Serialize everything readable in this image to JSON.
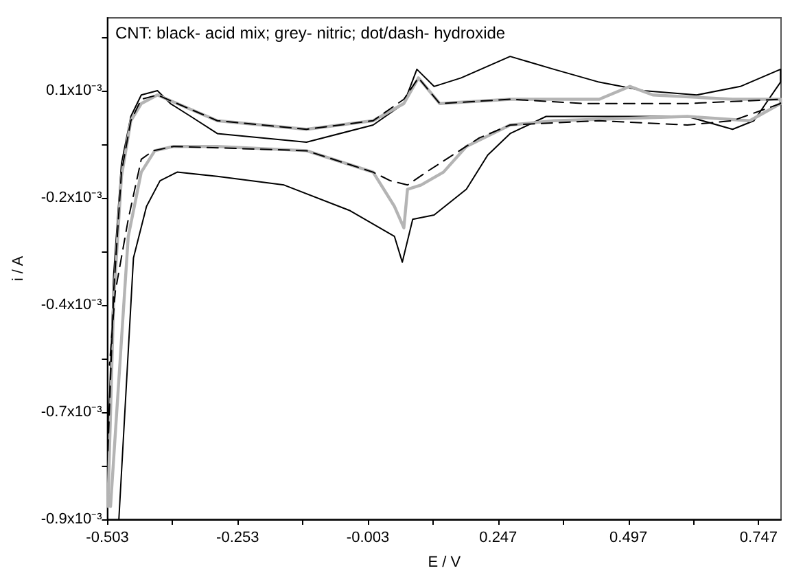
{
  "chart_data": {
    "type": "line",
    "xlabel": "E / V",
    "ylabel": "i / A",
    "annotations": [
      "CNT: black- acid mix; grey- nitric; dot/dash- hydroxide"
    ],
    "xlim": [
      -0.503,
      0.79
    ],
    "xticks": [
      -0.503,
      {
        "value": -0.378,
        "label": null
      },
      -0.253,
      {
        "value": -0.128,
        "label": null
      },
      -0.003,
      {
        "value": 0.122,
        "label": null
      },
      0.247,
      {
        "value": 0.372,
        "label": null
      },
      0.497,
      {
        "value": 0.622,
        "label": null
      },
      0.747
    ],
    "ylim": [
      -0.0009,
      0.00027
    ],
    "yticks": [
      {
        "value": -0.0009,
        "label": "-0.9x10⁻³"
      },
      {
        "value": -0.000775,
        "label": null
      },
      {
        "value": -0.00065,
        "label": "-0.7x10⁻³"
      },
      {
        "value": -0.000525,
        "label": null
      },
      {
        "value": -0.0004,
        "label": "-0.4x10⁻³"
      },
      {
        "value": -0.000275,
        "label": null
      },
      {
        "value": -0.00015,
        "label": "-0.2x10⁻³"
      },
      {
        "value": -2.5e-05,
        "label": null
      },
      {
        "value": 0.0001,
        "label": "0.1x10⁻³"
      },
      {
        "value": 0.000225,
        "label": null
      }
    ],
    "series": [
      {
        "color": "#000000",
        "line_style": "solid",
        "x": [
          -0.502,
          -0.491,
          -0.476,
          -0.458,
          -0.438,
          -0.407,
          -0.382,
          -0.343,
          -0.292,
          -0.121,
          0.007,
          0.066,
          0.091,
          0.124,
          0.176,
          0.27,
          0.354,
          0.441,
          0.526,
          0.628,
          0.712,
          0.789,
          0.789,
          0.738,
          0.697,
          0.61,
          0.441,
          0.339,
          0.27,
          0.227,
          0.186,
          0.124,
          0.083,
          0.063,
          0.048,
          -0.037,
          -0.164,
          -0.292,
          -0.369,
          -0.402,
          -0.428,
          -0.453,
          -0.481
        ],
        "values": [
          -0.00073,
          -0.00033,
          -7e-05,
          4e-05,
          9e-05,
          0.0001,
          7e-05,
          4e-05,
          0,
          -2e-05,
          2e-05,
          7e-05,
          0.00015,
          0.00011,
          0.00013,
          0.00018,
          0.00015,
          0.00012,
          0.0001,
          9e-05,
          0.00011,
          0.00015,
          0.00012,
          3e-05,
          1e-05,
          4e-05,
          4e-05,
          4e-05,
          0,
          -5e-05,
          -0.00013,
          -0.00019,
          -0.0002,
          -0.0003,
          -0.00024,
          -0.00018,
          -0.00012,
          -0.0001,
          -9e-05,
          -0.00011,
          -0.00017,
          -0.00029,
          -0.0009
        ]
      },
      {
        "color": "#b4b4b4",
        "line_style": "solid",
        "x": [
          -0.502,
          -0.491,
          -0.476,
          -0.458,
          -0.438,
          -0.407,
          -0.369,
          -0.292,
          -0.121,
          0.007,
          0.066,
          0.094,
          0.135,
          0.27,
          0.441,
          0.5,
          0.544,
          0.697,
          0.789,
          0.789,
          0.73,
          0.61,
          0.354,
          0.27,
          0.186,
          0.142,
          0.099,
          0.073,
          0.066,
          0.048,
          0.007,
          -0.121,
          -0.292,
          -0.376,
          -0.412,
          -0.438,
          -0.463,
          -0.497
        ],
        "values": [
          -0.00087,
          -0.00039,
          -0.0001,
          3e-05,
          7e-05,
          9e-05,
          7e-05,
          3e-05,
          1e-05,
          3e-05,
          7e-05,
          0.00013,
          7e-05,
          8e-05,
          8e-05,
          0.00011,
          9e-05,
          8e-05,
          8e-05,
          7e-05,
          3e-05,
          4e-05,
          3e-05,
          2e-05,
          -3e-05,
          -9e-05,
          -0.00012,
          -0.00013,
          -0.00022,
          -0.00017,
          -9e-05,
          -4e-05,
          -3e-05,
          -3e-05,
          -4e-05,
          -9e-05,
          -0.00024,
          -0.00087
        ]
      },
      {
        "color": "#000000",
        "line_style": "dashed",
        "x": [
          -0.502,
          -0.491,
          -0.476,
          -0.458,
          -0.438,
          -0.407,
          -0.369,
          -0.292,
          -0.121,
          0.007,
          0.066,
          0.094,
          0.135,
          0.27,
          0.416,
          0.61,
          0.789,
          0.789,
          0.697,
          0.61,
          0.441,
          0.27,
          0.211,
          0.16,
          0.109,
          0.073,
          0.04,
          0.007,
          -0.121,
          -0.376,
          -0.415,
          -0.438,
          -0.463,
          -0.488,
          -0.499
        ],
        "values": [
          -0.00074,
          -0.00037,
          -9e-05,
          3e-05,
          8e-05,
          9e-05,
          7e-05,
          3e-05,
          1e-05,
          3e-05,
          8e-05,
          0.00013,
          7e-05,
          8e-05,
          7e-05,
          7e-05,
          8e-05,
          7e-05,
          3e-05,
          2e-05,
          3e-05,
          2e-05,
          -1e-05,
          -5e-05,
          -9e-05,
          -0.00012,
          -0.00011,
          -9e-05,
          -4e-05,
          -3e-05,
          -4e-05,
          -6e-05,
          -0.0002,
          -0.00037,
          -0.00054
        ]
      }
    ]
  }
}
